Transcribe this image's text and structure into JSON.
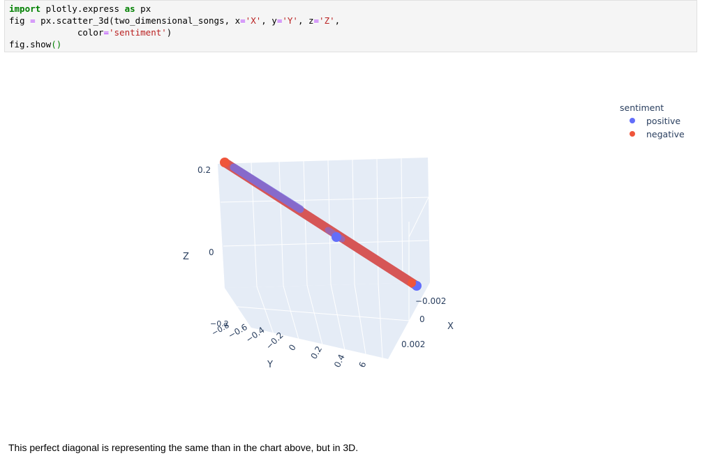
{
  "code": {
    "line1": {
      "kw1": "import",
      "mid": " plotly.express ",
      "kw2": "as",
      "tail": " px"
    },
    "line2": {
      "a": "fig ",
      "eq": "=",
      "b": " px.scatter_3d(two_dimensional_songs, x",
      "eq2": "=",
      "s1": "'X'",
      "c": ", y",
      "eq3": "=",
      "s2": "'Y'",
      "d": ", z",
      "eq4": "=",
      "s3": "'Z'",
      "e": ","
    },
    "line3": {
      "a": "             color",
      "eq": "=",
      "s": "'sentiment'",
      "b": ")"
    },
    "line4": {
      "a": "fig.show",
      "p": "()"
    }
  },
  "legend": {
    "title": "sentiment",
    "items": [
      {
        "label": "positive",
        "color": "#636efa"
      },
      {
        "label": "negative",
        "color": "#ef553b"
      }
    ]
  },
  "axes": {
    "z": {
      "title": "Z",
      "ticks": [
        "0.2",
        "0",
        "−0.2"
      ]
    },
    "y": {
      "title": "Y",
      "ticks": [
        "−0.8",
        "−0.6",
        "−0.4",
        "−0.2",
        "0",
        "0.2",
        "0.4",
        "6"
      ]
    },
    "x": {
      "title": "X",
      "ticks": [
        "−0.002",
        "0",
        "0.002"
      ]
    }
  },
  "chart_data": {
    "type": "scatter",
    "title": "",
    "xlabel": "X",
    "ylabel": "Y",
    "zlabel": "Z",
    "series": [
      {
        "name": "positive",
        "color": "#636efa"
      },
      {
        "name": "negative",
        "color": "#ef553b"
      }
    ],
    "legend_position": "top-right"
  },
  "markdown": {
    "text": "This perfect diagonal is representing the same than in the chart above, but in 3D."
  }
}
